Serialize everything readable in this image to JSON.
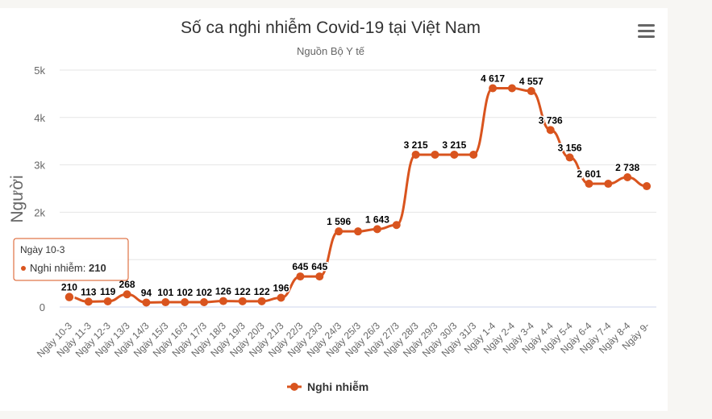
{
  "chart_data": {
    "type": "line",
    "title": "Số ca nghi nhiễm Covid-19 tại Việt Nam",
    "subtitle": "Nguồn Bộ Y tế",
    "ylabel": "Người",
    "xlabel": "",
    "ylim": [
      0,
      5000
    ],
    "yticks": [
      "0",
      "1k",
      "2k",
      "3k",
      "4k",
      "5k"
    ],
    "ytick_values": [
      0,
      1000,
      2000,
      3000,
      4000,
      5000
    ],
    "grid": true,
    "legend_position": "bottom",
    "categories": [
      "Ngày 10-3",
      "Ngày 11-3",
      "Ngày 12-3",
      "Ngày 13/3",
      "Ngày 14/3",
      "Ngày 15/3",
      "Ngày 16/3",
      "Ngày 17/3",
      "Ngày 18/3",
      "Ngày 19/3",
      "Ngày 20/3",
      "Ngày 21/3",
      "Ngày 22/3",
      "Ngày 23/3",
      "Ngày 24/3",
      "Ngày 25/3",
      "Ngày 26/3",
      "Ngày 27/3",
      "Ngày 28/3",
      "Ngày 29/3",
      "Ngày 30/3",
      "Ngày 31/3",
      "Ngày 1-4",
      "Ngày 2-4",
      "Ngày 3-4",
      "Ngày 4-4",
      "Ngày 5-4",
      "Ngày 6-4",
      "Ngày 7-4",
      "Ngày 8-4",
      "Ngày 9-"
    ],
    "series": [
      {
        "name": "Nghi nhiễm",
        "color": "#d9541e",
        "values": [
          210,
          113,
          119,
          268,
          94,
          101,
          102,
          102,
          126,
          122,
          122,
          196,
          645,
          645,
          1596,
          1596,
          1643,
          1730,
          3215,
          3215,
          3215,
          3215,
          4617,
          4617,
          4557,
          3736,
          3156,
          2601,
          2601,
          2738,
          2550
        ],
        "data_labels": [
          "210",
          "113",
          "119",
          "268",
          "94",
          "101",
          "102",
          "102",
          "126",
          "122",
          "122",
          "196",
          "645",
          "645",
          "1 596",
          "",
          "1 643",
          "",
          "3 215",
          "",
          "3 215",
          "",
          "4 617",
          "",
          "4 557",
          "3 736",
          "3 156",
          "2 601",
          "",
          "2 738",
          ""
        ]
      }
    ],
    "tooltip": {
      "category": "Ngày 10-3",
      "series_label": "Nghi nhiễm: ",
      "value": "210"
    }
  },
  "icons": {
    "menu": "hamburger-menu-icon"
  }
}
